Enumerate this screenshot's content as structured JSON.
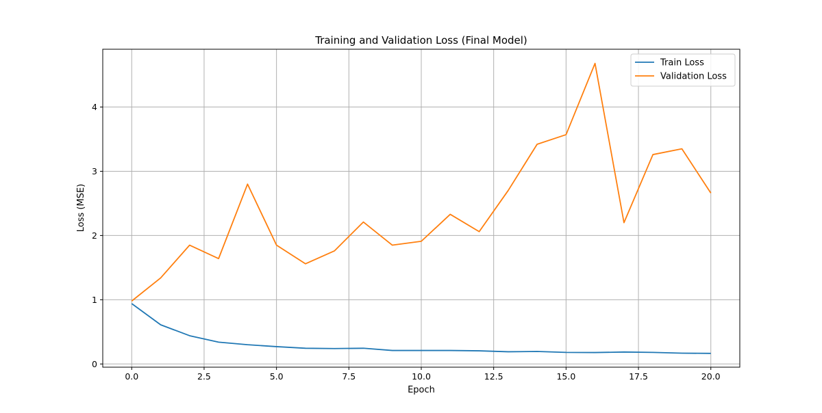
{
  "chart_data": {
    "type": "line",
    "title": "Training and Validation Loss (Final Model)",
    "xlabel": "Epoch",
    "ylabel": "Loss (MSE)",
    "xlim": [
      -1.0,
      21.0
    ],
    "ylim": [
      -0.05,
      4.9
    ],
    "xticks": [
      0.0,
      2.5,
      5.0,
      7.5,
      10.0,
      12.5,
      15.0,
      17.5,
      20.0
    ],
    "xtick_labels": [
      "0.0",
      "2.5",
      "5.0",
      "7.5",
      "10.0",
      "12.5",
      "15.0",
      "17.5",
      "20.0"
    ],
    "yticks": [
      0,
      1,
      2,
      3,
      4
    ],
    "ytick_labels": [
      "0",
      "1",
      "2",
      "3",
      "4"
    ],
    "grid": true,
    "legend_position": "top-right",
    "x": [
      0,
      1,
      2,
      3,
      4,
      5,
      6,
      7,
      8,
      9,
      10,
      11,
      12,
      13,
      14,
      15,
      16,
      17,
      18,
      19,
      20
    ],
    "series": [
      {
        "name": "Train Loss",
        "color": "#1f77b4",
        "values": [
          0.94,
          0.61,
          0.44,
          0.34,
          0.3,
          0.27,
          0.245,
          0.24,
          0.245,
          0.21,
          0.21,
          0.21,
          0.205,
          0.19,
          0.195,
          0.18,
          0.178,
          0.186,
          0.18,
          0.168,
          0.165
        ]
      },
      {
        "name": "Validation Loss",
        "color": "#ff7f0e",
        "values": [
          0.98,
          1.34,
          1.85,
          1.64,
          2.8,
          1.85,
          1.56,
          1.76,
          2.21,
          1.85,
          1.91,
          2.33,
          2.06,
          2.7,
          3.42,
          3.57,
          4.68,
          2.2,
          3.26,
          3.35,
          2.66
        ]
      }
    ]
  }
}
